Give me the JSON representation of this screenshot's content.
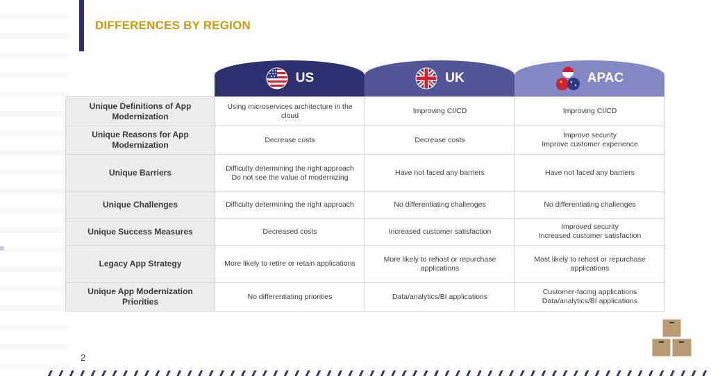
{
  "page": {
    "title": "DIFFERENCES BY REGION",
    "page_number": "2"
  },
  "colors": {
    "title_gold": "#c79a10",
    "navy": "#2e3170",
    "tab_us": "#2e3170",
    "tab_uk": "#525699",
    "tab_apac": "#8388c5",
    "row_header_bg": "#ececee"
  },
  "regions": [
    {
      "label": "US",
      "icon": "us-flag-icon"
    },
    {
      "label": "UK",
      "icon": "uk-flag-icon"
    },
    {
      "label": "APAC",
      "icon": "apac-flags-icon"
    }
  ],
  "rows": [
    {
      "header": "Unique Definitions of App Modernization",
      "cells": [
        "Using microservices architecture in the cloud",
        "Improving CI/CD",
        "Improving CI/CD"
      ]
    },
    {
      "header": "Unique Reasons for App Modernization",
      "cells": [
        "Decrease costs",
        "Decrease costs",
        "Improve security\nImprove customer experience"
      ]
    },
    {
      "header": "Unique Barriers",
      "cells": [
        "Difficulty determining the right approach\nDo not see the value of modernizing",
        "Have not faced any barriers",
        "Have not faced any barriers"
      ]
    },
    {
      "header": "Unique Challenges",
      "cells": [
        "Difficulty determining the right approach",
        "No differentiating challenges",
        "No differentiating challenges"
      ]
    },
    {
      "header": "Unique Success Measures",
      "cells": [
        "Decreased costs",
        "Increased customer satisfaction",
        "Improved security\nIncreased customer satisfaction"
      ]
    },
    {
      "header": "Legacy App Strategy",
      "cells": [
        "More likely to retire or retain applications",
        "More likely to rehost or repurchase applications",
        "Most likely to rehost or repurchase applications"
      ]
    },
    {
      "header": "Unique App Modernization Priorities",
      "cells": [
        "No differentiating priorities",
        "Data/analytics/BI applications",
        "Customer-facing applications\nData/analytics/BI applications"
      ]
    }
  ],
  "decor": {
    "corner_icon": "stacked-boxes-icon"
  }
}
